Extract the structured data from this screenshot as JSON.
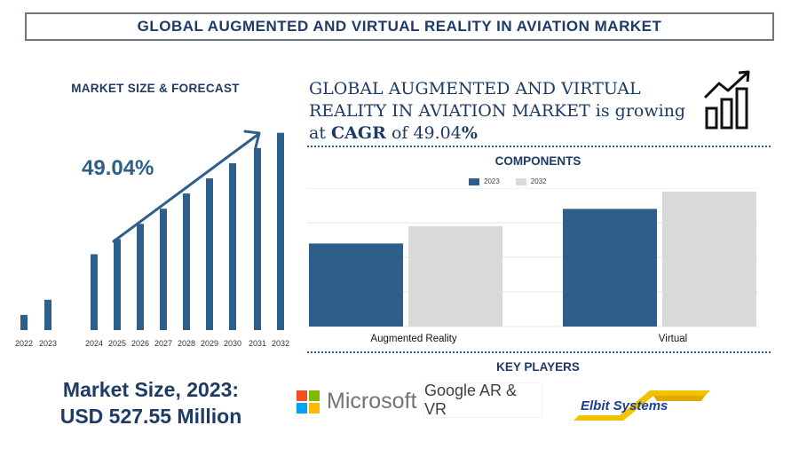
{
  "title": "GLOBAL AUGMENTED AND VIRTUAL REALITY IN AVIATION  MARKET",
  "left_heading": "MARKET SIZE & FORECAST",
  "cagr_big": "49.04%",
  "market_size_line1": "Market Size, 2023:",
  "market_size_line2": "USD 527.55 Million",
  "growth": {
    "line1": "GLOBAL AUGMENTED AND VIRTUAL",
    "line2_pre": "REALITY IN AVIATION  MARKET is growing",
    "at": "at ",
    "cagr_label": "CAGR",
    "of": " of  49.04",
    "pct": "%"
  },
  "icons": {
    "growth": "growth-chart-icon",
    "trend_arrow": "trend-arrow-icon"
  },
  "components_heading": "COMPONENTS",
  "key_players_heading": "KEY PLAYERS",
  "key_players": {
    "microsoft": "Microsoft",
    "google": "Google AR & VR",
    "elbit": "Elbit Systems"
  },
  "colors": {
    "primary": "#2e5f8a",
    "secondary": "#d9d9d9",
    "heading": "#1e3a66"
  },
  "chart_data": [
    {
      "type": "bar",
      "categories": [
        "2022",
        "2023",
        "2024",
        "2025",
        "2026",
        "2027",
        "2028",
        "2029",
        "2030",
        "2031",
        "2032"
      ],
      "values": [
        9,
        18,
        45,
        54,
        63,
        72,
        81,
        90,
        99,
        108,
        117
      ],
      "ylim": [
        0,
        120
      ],
      "annotation": "49.04%"
    },
    {
      "type": "bar",
      "categories": [
        "Augmented Reality",
        "Virtual"
      ],
      "series": [
        {
          "name": "2023",
          "values": [
            48,
            68
          ]
        },
        {
          "name": "2032",
          "values": [
            58,
            78
          ]
        }
      ],
      "ylim": [
        0,
        80
      ],
      "grid": true,
      "legend": "top"
    }
  ]
}
